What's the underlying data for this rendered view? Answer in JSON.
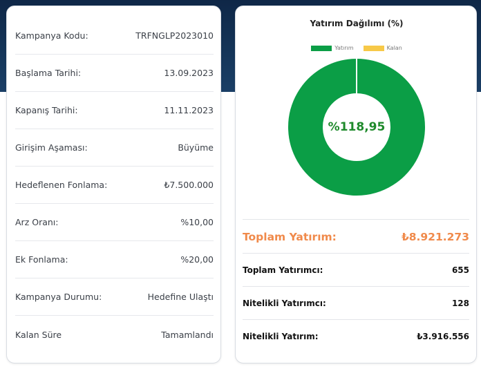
{
  "details": {
    "rows": [
      {
        "label": "Kampanya Kodu:",
        "value": "TRFNGLP2023010"
      },
      {
        "label": "Başlama Tarihi:",
        "value": "13.09.2023"
      },
      {
        "label": "Kapanış Tarihi:",
        "value": "11.11.2023"
      },
      {
        "label": "Girişim Aşaması:",
        "value": "Büyüme"
      },
      {
        "label": "Hedeflenen Fonlama:",
        "value": "₺7.500.000"
      },
      {
        "label": "Arz Oranı:",
        "value": "%10,00"
      },
      {
        "label": "Ek Fonlama:",
        "value": "%20,00"
      },
      {
        "label": "Kampanya Durumu:",
        "value": "Hedefine Ulaştı"
      },
      {
        "label": "Kalan Süre",
        "value": "Tamamlandı"
      }
    ]
  },
  "chart_data": {
    "type": "pie",
    "title": "Yatırım Dağılımı (%)",
    "series": [
      {
        "name": "Yatırım",
        "value": 100,
        "color": "#0b9e46"
      },
      {
        "name": "Kalan",
        "value": 0,
        "color": "#f7c948"
      }
    ],
    "center_label": "%118,95",
    "legend_position": "top"
  },
  "summary": {
    "total_investment_label": "Toplam Yatırım:",
    "total_investment_value": "₺8.921.273",
    "total_investors_label": "Toplam Yatırımcı:",
    "total_investors_value": "655",
    "qualified_investors_label": "Nitelikli Yatırımcı:",
    "qualified_investors_value": "128",
    "qualified_investment_label": "Nitelikli Yatırım:",
    "qualified_investment_value": "₺3.916.556"
  },
  "colors": {
    "accent_orange": "#f08a4b",
    "donut_green": "#0b9e46",
    "center_text_green": "#1e8a2b",
    "header_navy": "#15365a"
  }
}
